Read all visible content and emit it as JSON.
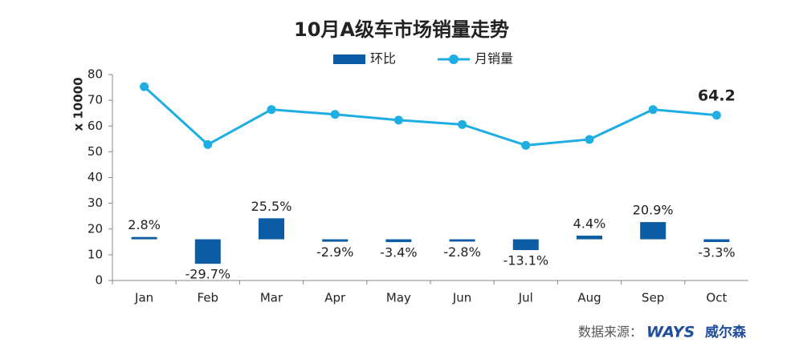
{
  "chart_data": {
    "type": "bar-line",
    "title": "10月A级车市场销量走势",
    "ylabel": "x 10000",
    "categories": [
      "Jan",
      "Feb",
      "Mar",
      "Apr",
      "May",
      "Jun",
      "Jul",
      "Aug",
      "Sep",
      "Oct"
    ],
    "series": [
      {
        "name": "环比",
        "type": "bar",
        "axis": "y2",
        "color": "#0b5ca5",
        "values": [
          2.8,
          -29.7,
          25.5,
          -2.9,
          -3.4,
          -2.8,
          -13.1,
          4.4,
          20.9,
          -3.3
        ],
        "value_labels": [
          "2.8%",
          "-29.7%",
          "25.5%",
          "-2.9%",
          "-3.4%",
          "-2.8%",
          "-13.1%",
          "4.4%",
          "20.9%",
          "-3.3%"
        ]
      },
      {
        "name": "月销量",
        "type": "line",
        "color": "#1eaee3",
        "values": [
          75.3,
          52.8,
          66.4,
          64.5,
          62.3,
          60.6,
          52.5,
          54.8,
          66.4,
          64.2
        ],
        "value_labels": [
          null,
          null,
          null,
          null,
          null,
          null,
          null,
          null,
          null,
          "64.2"
        ]
      }
    ],
    "ylim": [
      0,
      80
    ],
    "yticks": [
      0,
      10,
      20,
      30,
      40,
      50,
      60,
      70,
      80
    ],
    "y2lim": [
      -50,
      200
    ],
    "legend": "top",
    "source": "数据来源：",
    "logo": "WAYS",
    "logo_text": "威尔森"
  }
}
